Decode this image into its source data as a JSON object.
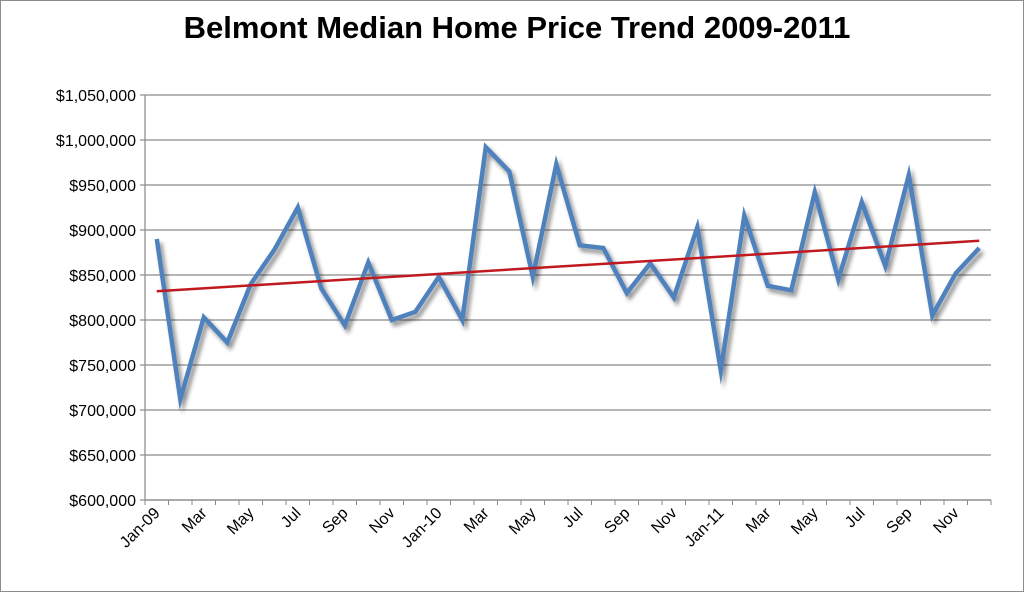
{
  "chart_data": {
    "type": "line",
    "title": "Belmont Median Home Price Trend 2009-2011",
    "xlabel": "",
    "ylabel": "",
    "ylim": [
      600000,
      1050000
    ],
    "y_ticks": [
      "$600,000",
      "$650,000",
      "$700,000",
      "$750,000",
      "$800,000",
      "$850,000",
      "$900,000",
      "$950,000",
      "$1,000,000",
      "$1,050,000"
    ],
    "y_tick_values": [
      600000,
      650000,
      700000,
      750000,
      800000,
      850000,
      900000,
      950000,
      1000000,
      1050000
    ],
    "x_tick_labels": [
      "Jan-09",
      "Mar",
      "May",
      "Jul",
      "Sep",
      "Nov",
      "Jan-10",
      "Mar",
      "May",
      "Jul",
      "Sep",
      "Nov",
      "Jan-11",
      "Mar",
      "May",
      "Jul",
      "Sep",
      "Nov"
    ],
    "x": [
      "Jan-09",
      "Feb-09",
      "Mar-09",
      "Apr-09",
      "May-09",
      "Jun-09",
      "Jul-09",
      "Aug-09",
      "Sep-09",
      "Oct-09",
      "Nov-09",
      "Dec-09",
      "Jan-10",
      "Feb-10",
      "Mar-10",
      "Apr-10",
      "May-10",
      "Jun-10",
      "Jul-10",
      "Aug-10",
      "Sep-10",
      "Oct-10",
      "Nov-10",
      "Dec-10",
      "Jan-11",
      "Feb-11",
      "Mar-11",
      "Apr-11",
      "May-11",
      "Jun-11",
      "Jul-11",
      "Aug-11",
      "Sep-11",
      "Oct-11",
      "Nov-11",
      "Dec-11"
    ],
    "series": [
      {
        "values": [
          890000,
          712000,
          803000,
          775000,
          840000,
          878000,
          925000,
          835000,
          794000,
          864000,
          800000,
          809000,
          848000,
          800000,
          992000,
          965000,
          848000,
          973000,
          883000,
          880000,
          830000,
          863000,
          825000,
          903000,
          744000,
          916000,
          838000,
          833000,
          942000,
          845000,
          931000,
          860000,
          961000,
          805000,
          852000,
          880000
        ],
        "color": "#4f81bd"
      }
    ],
    "trendline": {
      "start": 832000,
      "end": 888000,
      "color": "#c0191f"
    },
    "grid": true,
    "legend": "none"
  }
}
